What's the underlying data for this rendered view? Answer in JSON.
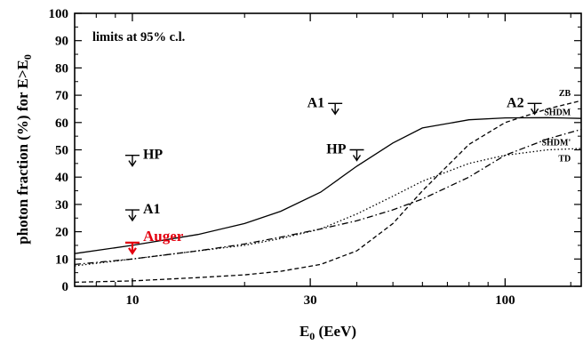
{
  "chart_data": {
    "type": "line",
    "title": "",
    "xlabel": "E",
    "xlabel_sub": "0",
    "xlabel_tail": " (EeV)",
    "ylabel": "photon fraction (%) for E>E",
    "ylabel_sub": "0",
    "x_scale": "log",
    "xlim": [
      7,
      160
    ],
    "ylim": [
      0,
      100
    ],
    "x_ticks": [
      {
        "value": 10,
        "label": "10"
      },
      {
        "value": 30,
        "label": "30"
      },
      {
        "value": 100,
        "label": "100"
      }
    ],
    "y_ticks": [
      {
        "value": 0,
        "label": "0"
      },
      {
        "value": 10,
        "label": "10"
      },
      {
        "value": 20,
        "label": "20"
      },
      {
        "value": 30,
        "label": "30"
      },
      {
        "value": 40,
        "label": "40"
      },
      {
        "value": 50,
        "label": "50"
      },
      {
        "value": 60,
        "label": "60"
      },
      {
        "value": 70,
        "label": "70"
      },
      {
        "value": 80,
        "label": "80"
      },
      {
        "value": 90,
        "label": "90"
      },
      {
        "value": 100,
        "label": "100"
      }
    ],
    "grid": false,
    "annotation": "limits at 95% c.l.",
    "series": [
      {
        "name": "SHDM",
        "style": "solid",
        "x": [
          7,
          10,
          15,
          20,
          25,
          32,
          40,
          50,
          60,
          80,
          100,
          130,
          160
        ],
        "y": [
          12,
          15,
          19,
          23,
          27.5,
          34.5,
          44,
          52.5,
          58,
          61,
          61.7,
          61.8,
          61.5
        ]
      },
      {
        "name": "ZB",
        "style": "dashed",
        "x": [
          7,
          10,
          15,
          20,
          25,
          32,
          40,
          50,
          60,
          80,
          100,
          130,
          160
        ],
        "y": [
          1.5,
          2,
          3.2,
          4.2,
          5.5,
          8,
          13,
          23,
          35,
          52,
          60,
          65,
          68
        ]
      },
      {
        "name": "SHDM'",
        "style": "dashdot",
        "x": [
          7,
          10,
          15,
          20,
          25,
          32,
          40,
          50,
          60,
          80,
          100,
          130,
          160
        ],
        "y": [
          8,
          10,
          13,
          15.5,
          18,
          21,
          24,
          28,
          32,
          40,
          48,
          54,
          57.5
        ]
      },
      {
        "name": "TD",
        "style": "dotted",
        "x": [
          7,
          10,
          15,
          20,
          25,
          32,
          40,
          50,
          60,
          80,
          100,
          130,
          160
        ],
        "y": [
          7.5,
          10,
          13,
          15,
          17.5,
          21,
          26.5,
          33,
          38.5,
          45,
          48,
          50,
          50.5
        ]
      }
    ],
    "series_labels": [
      {
        "text": "ZB",
        "x": 150,
        "y": 71
      },
      {
        "text": "SHDM",
        "x": 150,
        "y": 64
      },
      {
        "text": "SHDM'",
        "x": 150,
        "y": 53
      },
      {
        "text": "TD",
        "x": 150,
        "y": 47
      }
    ],
    "limits": [
      {
        "label": "HP",
        "x": 10,
        "value": 48,
        "color": "#000000",
        "label_pos": "right"
      },
      {
        "label": "A1",
        "x": 10,
        "value": 28,
        "color": "#000000",
        "label_pos": "right"
      },
      {
        "label": "Auger",
        "x": 10,
        "value": 16,
        "color": "#e3000f",
        "label_pos": "right"
      },
      {
        "label": "A1",
        "x": 35,
        "value": 67,
        "color": "#000000",
        "label_pos": "left"
      },
      {
        "label": "HP",
        "x": 40,
        "value": 50,
        "color": "#000000",
        "label_pos": "left"
      },
      {
        "label": "A2",
        "x": 120,
        "value": 67,
        "color": "#000000",
        "label_pos": "left"
      }
    ]
  }
}
